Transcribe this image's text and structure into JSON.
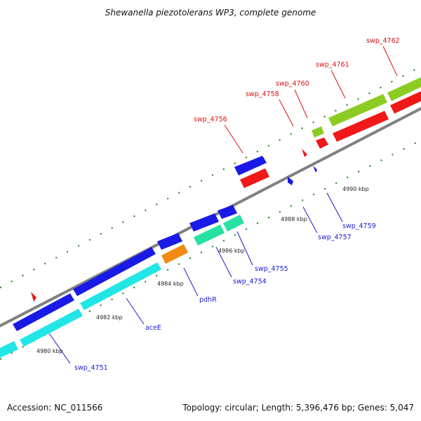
{
  "title": "Shewanella piezotolerans WP3, complete genome",
  "footer": {
    "accession": "Accession: NC_011566",
    "topology": "Topology: circular; Length: 5,396,476 bp; Genes: 5,047"
  },
  "colors": {
    "forward_label": "#dd1111",
    "reverse_label": "#1a1ad0",
    "backbone": "#808080",
    "tick": "#1a7a1a"
  },
  "scale_labels": [
    "4980 kbp",
    "4982 kbp",
    "4984 kbp",
    "4986 kbp",
    "4988 kbp",
    "4990 kbp"
  ],
  "genes": [
    {
      "name": "swp_4751",
      "strand": "reverse",
      "color": "blue"
    },
    {
      "name": "aceE",
      "strand": "reverse",
      "color": "blue"
    },
    {
      "name": "pdhR",
      "strand": "reverse",
      "color": "blue"
    },
    {
      "name": "swp_4754",
      "strand": "reverse",
      "color": "blue"
    },
    {
      "name": "swp_4755",
      "strand": "reverse",
      "color": "blue"
    },
    {
      "name": "swp_4756",
      "strand": "forward",
      "color": "red"
    },
    {
      "name": "swp_4757",
      "strand": "reverse",
      "color": "blue"
    },
    {
      "name": "swp_4758",
      "strand": "forward",
      "color": "red"
    },
    {
      "name": "swp_4759",
      "strand": "reverse",
      "color": "blue"
    },
    {
      "name": "swp_4760",
      "strand": "forward",
      "color": "red"
    },
    {
      "name": "swp_4761",
      "strand": "forward",
      "color": "red"
    },
    {
      "name": "swp_4762",
      "strand": "forward",
      "color": "red"
    }
  ]
}
